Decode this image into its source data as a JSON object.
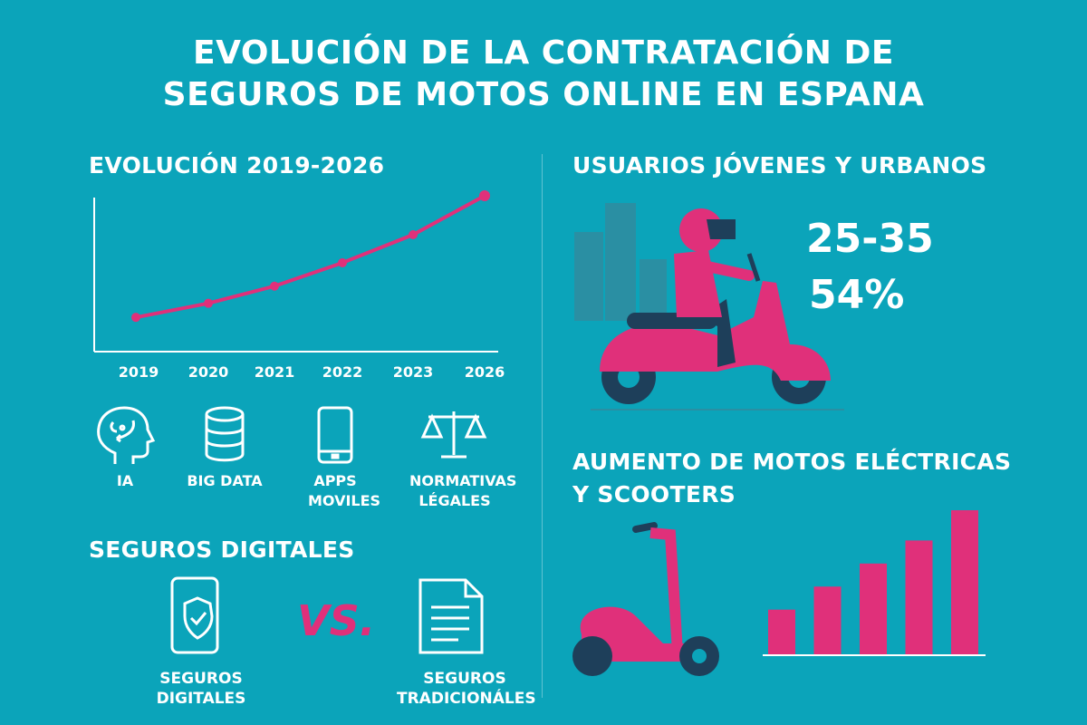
{
  "title": {
    "line1": "EVOLUCIÓN DE LA CONTRATACIÓN DE",
    "line2": "SEGUROS DE MOTOS ONLINE EN ESPANA"
  },
  "colors": {
    "background": "#0ba4ba",
    "accent": "#e0307a",
    "text": "#ffffff"
  },
  "evolution": {
    "heading": "EVOLUCIÓN  2019-2026"
  },
  "tech": {
    "items": [
      {
        "icon": "brain-head-icon",
        "label": "IA"
      },
      {
        "icon": "database-icon",
        "label": "BIG DATA"
      },
      {
        "icon": "smartphone-icon",
        "label": "APPS MOVILES"
      },
      {
        "icon": "scales-icon",
        "label": "NORMATIVAS LÉGALES"
      }
    ]
  },
  "digital": {
    "heading": "SEGUROS DIGITALES",
    "left_label": "SEGUROS DIGITALES",
    "vs": "VS.",
    "right_label": "SEGUROS TRADICIONÁLES",
    "left_icon": "phone-shield-icon",
    "right_icon": "document-icon"
  },
  "users": {
    "heading": "USUARIOS JÓVENES Y URBANOS",
    "age": "25-35",
    "percent": "54%",
    "illustration": "scooter-rider-icon"
  },
  "electric": {
    "heading_line1": "AUMENTO DE MOTOS ELÉCTRICAS",
    "heading_line2": "Y SCOOTERS",
    "illustration": "kick-scooter-icon"
  },
  "chart_data": [
    {
      "type": "line",
      "categories": [
        "2019",
        "2020",
        "2021",
        "2022",
        "2023",
        "2026"
      ],
      "values": [
        22,
        31,
        42,
        57,
        75,
        100
      ],
      "ylim": [
        0,
        100
      ],
      "grid": false,
      "title": "",
      "xlabel": "",
      "ylabel": ""
    },
    {
      "type": "bar",
      "categories": [
        "",
        "",
        "",
        "",
        ""
      ],
      "values": [
        31,
        47,
        63,
        79,
        100
      ],
      "ylim": [
        0,
        100
      ],
      "grid": false,
      "title": "",
      "xlabel": "",
      "ylabel": ""
    }
  ]
}
